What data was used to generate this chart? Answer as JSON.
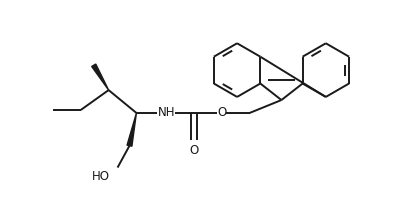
{
  "background_color": "#ffffff",
  "line_color": "#1a1a1a",
  "line_width": 1.4,
  "figure_size": [
    4.0,
    2.08
  ],
  "dpi": 100,
  "xlim": [
    0.0,
    4.0
  ],
  "ylim": [
    0.0,
    2.08
  ]
}
